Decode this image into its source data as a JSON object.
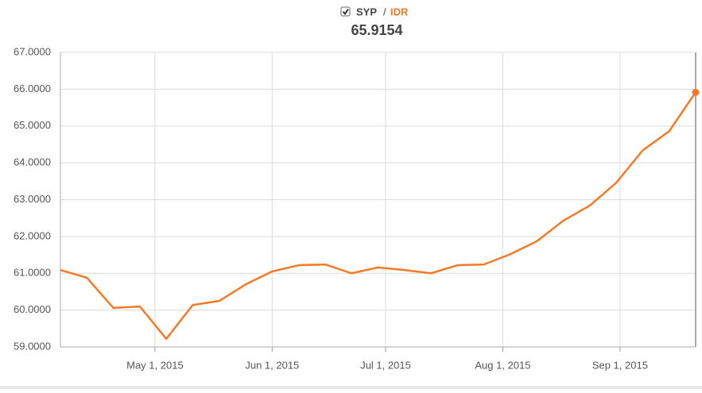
{
  "chart_data": {
    "type": "line",
    "legend": {
      "base": "SYP",
      "separator": "/",
      "quote": "IDR"
    },
    "subtitle": "65.9154",
    "series": [
      {
        "name": "SYP / IDR",
        "color": "#f47a27",
        "x": [
          "2015-04-06",
          "2015-04-13",
          "2015-04-20",
          "2015-04-27",
          "2015-05-04",
          "2015-05-11",
          "2015-05-18",
          "2015-05-25",
          "2015-06-01",
          "2015-06-08",
          "2015-06-15",
          "2015-06-22",
          "2015-06-29",
          "2015-07-06",
          "2015-07-13",
          "2015-07-20",
          "2015-07-27",
          "2015-08-03",
          "2015-08-10",
          "2015-08-17",
          "2015-08-24",
          "2015-08-31",
          "2015-09-07",
          "2015-09-14",
          "2015-09-21"
        ],
        "values": [
          61.09,
          60.88,
          60.06,
          60.1,
          59.22,
          60.14,
          60.25,
          60.7,
          61.05,
          61.22,
          61.24,
          61.0,
          61.16,
          61.09,
          61.0,
          61.22,
          61.24,
          61.52,
          61.87,
          62.43,
          62.84,
          63.46,
          64.34,
          64.86,
          65.9154
        ]
      }
    ],
    "xlim": [
      "2015-04-06",
      "2015-09-21"
    ],
    "xticks": [
      {
        "value": "2015-05-01",
        "label": "May 1, 2015"
      },
      {
        "value": "2015-06-01",
        "label": "Jun 1, 2015"
      },
      {
        "value": "2015-07-01",
        "label": "Jul 1, 2015"
      },
      {
        "value": "2015-08-01",
        "label": "Aug 1, 2015"
      },
      {
        "value": "2015-09-01",
        "label": "Sep 1, 2015"
      }
    ],
    "ylim": [
      59,
      67
    ],
    "yticks": [
      {
        "value": 59,
        "label": "59.0000"
      },
      {
        "value": 60,
        "label": "60.0000"
      },
      {
        "value": 61,
        "label": "61.0000"
      },
      {
        "value": 62,
        "label": "62.0000"
      },
      {
        "value": 63,
        "label": "63.0000"
      },
      {
        "value": 64,
        "label": "64.0000"
      },
      {
        "value": 65,
        "label": "65.0000"
      },
      {
        "value": 66,
        "label": "66.0000"
      },
      {
        "value": 67,
        "label": "67.0000"
      }
    ],
    "grid": true
  }
}
